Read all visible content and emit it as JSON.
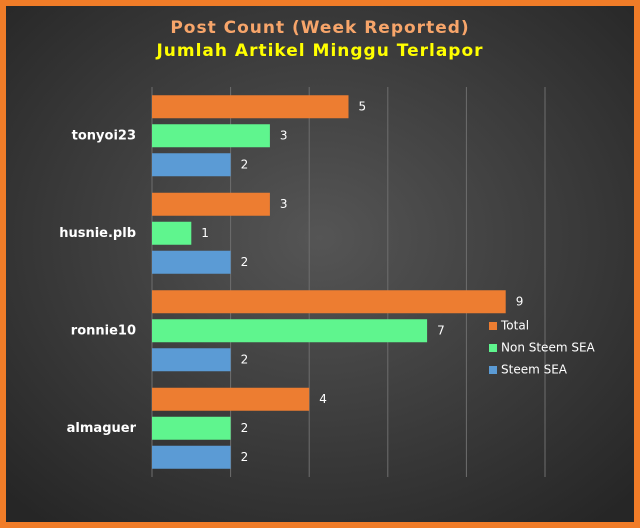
{
  "chart_data": {
    "type": "bar",
    "orientation": "horizontal",
    "title": "Post Count (Week Reported)",
    "subtitle": "Jumlah Artikel Minggu Terlapor",
    "categories": [
      "tonyoi23",
      "husnie.plb",
      "ronnie10",
      "almaguer"
    ],
    "series": [
      {
        "name": "Total",
        "color": "#ed7d31",
        "values": [
          5,
          3,
          9,
          4
        ]
      },
      {
        "name": "Non Steem SEA",
        "color": "#5ff58e",
        "values": [
          3,
          1,
          7,
          2
        ]
      },
      {
        "name": "Steem SEA",
        "color": "#5b9bd5",
        "values": [
          2,
          2,
          2,
          2
        ]
      }
    ],
    "xlim": [
      0,
      10
    ],
    "xticks": [
      0,
      2,
      4,
      6,
      8,
      10
    ],
    "grid": true,
    "legend": "right"
  }
}
